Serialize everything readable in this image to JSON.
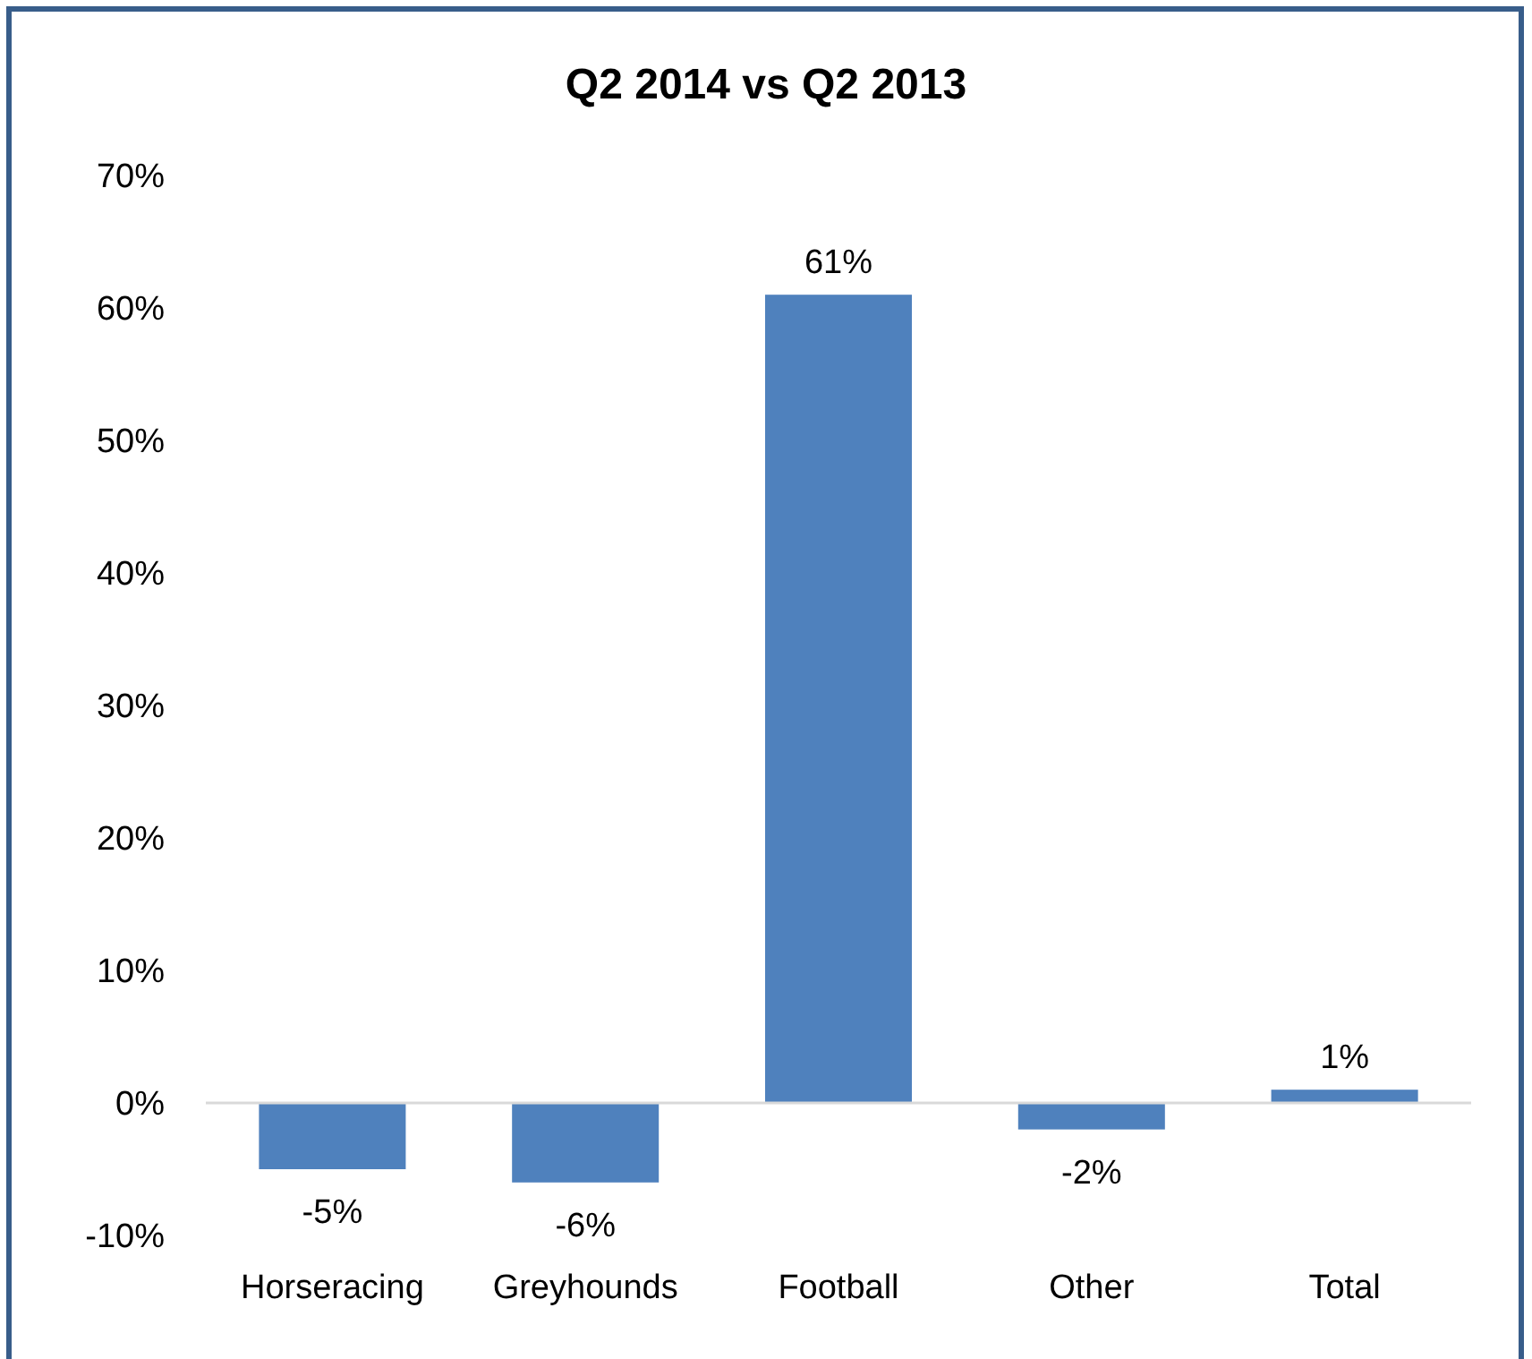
{
  "chart_data": {
    "type": "bar",
    "title": "Q2 2014 vs Q2 2013",
    "categories": [
      "Horseracing",
      "Greyhounds",
      "Football",
      "Other",
      "Total"
    ],
    "values": [
      -5,
      -6,
      61,
      -2,
      1
    ],
    "color": "#4f81bd",
    "value_labels": [
      "-5%",
      "-6%",
      "61%",
      "-2%",
      "1%"
    ],
    "ylim": [
      -10,
      70
    ],
    "yticks": [
      {
        "value": -10,
        "label": "-10%"
      },
      {
        "value": 0,
        "label": "0%"
      },
      {
        "value": 10,
        "label": "10%"
      },
      {
        "value": 20,
        "label": "20%"
      },
      {
        "value": 30,
        "label": "30%"
      },
      {
        "value": 40,
        "label": "40%"
      },
      {
        "value": 50,
        "label": "50%"
      },
      {
        "value": 60,
        "label": "60%"
      },
      {
        "value": 70,
        "label": "70%"
      }
    ],
    "tick_labels": true
  }
}
